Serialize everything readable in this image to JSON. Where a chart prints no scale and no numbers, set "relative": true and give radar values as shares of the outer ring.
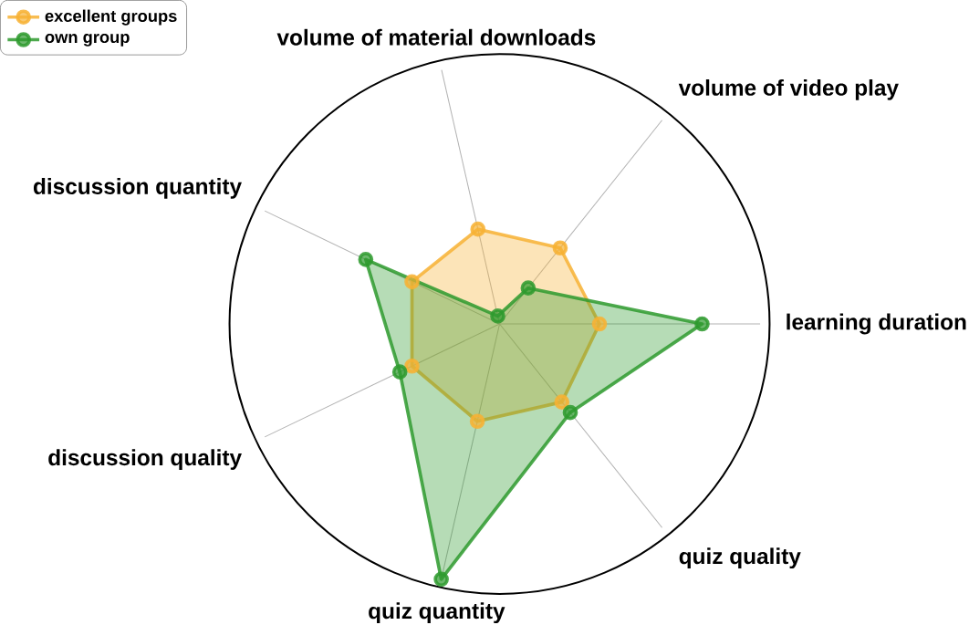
{
  "chart_data": {
    "type": "radar",
    "relative": true,
    "grid": true,
    "legend": "top left",
    "marker": "circle",
    "categories": [
      "volume of material downloads",
      "volume of video play",
      "learning duration",
      "quiz quality",
      "quiz quantity",
      "discussion quality",
      "discussion quantity"
    ],
    "series": [
      {
        "name": "excellent groups",
        "color": "#f7b234",
        "values": [
          0.36,
          0.36,
          0.37,
          0.37,
          0.37,
          0.36,
          0.36
        ]
      },
      {
        "name": "own group",
        "color": "#2e9a2e",
        "values": [
          0.03,
          0.17,
          0.75,
          0.42,
          0.97,
          0.41,
          0.55
        ]
      }
    ]
  }
}
